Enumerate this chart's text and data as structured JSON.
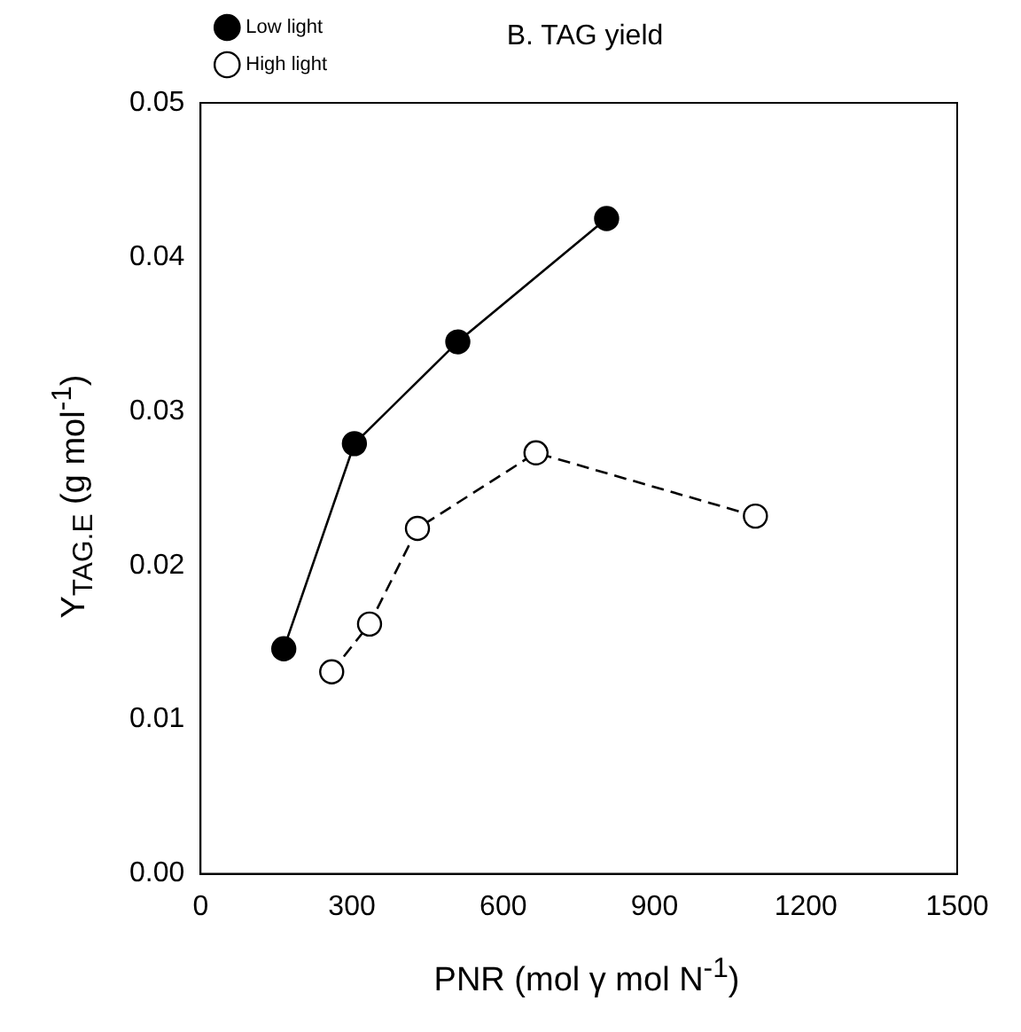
{
  "chart_data": {
    "type": "line",
    "title": "B. TAG yield",
    "xlabel": "PNR (mol γ mol N$^{-1}$)",
    "ylabel": "Y$_{TAG.E}$ (g mol$^{-1}$)",
    "xlim": [
      0,
      1500
    ],
    "xticks": [
      0,
      300,
      600,
      900,
      1200,
      1500
    ],
    "ylim": [
      0,
      0.05
    ],
    "yticks": [
      {
        "value": 0,
        "label": "0.00"
      },
      {
        "value": 0.01,
        "label": "0.01"
      },
      {
        "value": 0.02,
        "label": "0.02"
      },
      {
        "value": 0.03,
        "label": "0.03"
      },
      {
        "value": 0.04,
        "label": "0.04"
      },
      {
        "value": 0.05,
        "label": "0.05"
      }
    ],
    "grid": false,
    "legend": "top left",
    "marker": "circle",
    "series": [
      {
        "name": "Low light",
        "color": "#000000",
        "line_style": "solid",
        "x": [
          165,
          305,
          510,
          805
        ],
        "values": [
          0.0146,
          0.0279,
          0.0345,
          0.0425
        ]
      },
      {
        "name": "High light",
        "color": "#000000",
        "line_style": "dashed",
        "x": [
          260,
          335,
          430,
          665,
          1100
        ],
        "values": [
          0.0131,
          0.0162,
          0.0224,
          0.0273,
          0.0232
        ]
      }
    ]
  }
}
